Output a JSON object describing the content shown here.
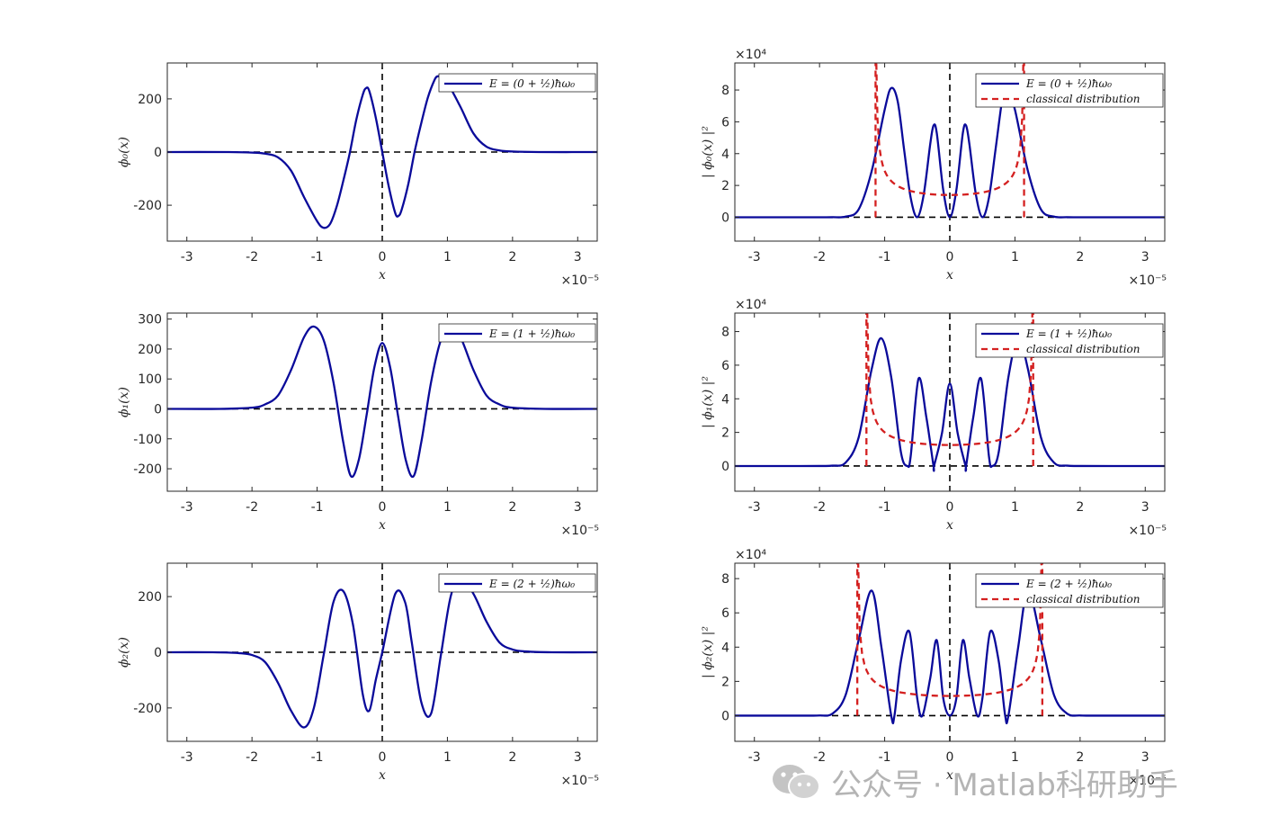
{
  "watermark": {
    "text": "公众号 · Matlab科研助手",
    "icon": "wechat-icon"
  },
  "colors": {
    "wave": "#0a0a9a",
    "classical": "#d42020",
    "axis": "#262626",
    "guide": "#000000"
  },
  "chart_data": [
    {
      "type": "line",
      "id": "phi0",
      "title": "",
      "xlabel": "x",
      "ylabel": "ϕ₀(x)",
      "x_multiplier": "×10⁻⁵",
      "y_multiplier": "",
      "xlim": [
        -3.3,
        3.3
      ],
      "ylim": [
        -335,
        335
      ],
      "xticks": [
        -3,
        -2,
        -1,
        0,
        1,
        2,
        3
      ],
      "xtick_labels": [
        "-3",
        "-2",
        "-1",
        "0",
        "1",
        "2",
        "3"
      ],
      "yticks": [
        -200,
        0,
        200
      ],
      "ytick_labels": [
        "-200",
        "0",
        "200"
      ],
      "legend": [
        "E = (0 + ½)ħω₀"
      ],
      "legend_position": "top-right",
      "guides": {
        "hline": 0,
        "vline": 0
      },
      "series": [
        {
          "name": "E = (0 + ½)ħω₀",
          "style": "solid",
          "x": [
            -3.3,
            -2.4,
            -2.0,
            -1.8,
            -1.6,
            -1.4,
            -1.2,
            -1.0,
            -0.9,
            -0.8,
            -0.7,
            -0.6,
            -0.5,
            -0.4,
            -0.3,
            -0.25,
            -0.2,
            -0.1,
            0,
            0.1,
            0.2,
            0.25,
            0.3,
            0.4,
            0.5,
            0.6,
            0.7,
            0.8,
            0.85,
            0.9,
            1.0,
            1.2,
            1.4,
            1.6,
            1.8,
            2.0,
            2.4,
            3.3
          ],
          "y": [
            0,
            0,
            -2,
            -6,
            -20,
            -70,
            -170,
            -260,
            -285,
            -270,
            -205,
            -110,
            -5,
            120,
            215,
            240,
            230,
            130,
            0,
            -130,
            -230,
            -240,
            -215,
            -120,
            5,
            110,
            205,
            270,
            285,
            280,
            260,
            170,
            70,
            20,
            6,
            2,
            0,
            0
          ]
        }
      ]
    },
    {
      "type": "line",
      "id": "phi0sq",
      "title": "",
      "xlabel": "x",
      "ylabel": "| ϕ₀(x) |²",
      "x_multiplier": "×10⁻⁵",
      "y_multiplier": "×10⁴",
      "xlim": [
        -3.3,
        3.3
      ],
      "ylim": [
        -1.5,
        9.7
      ],
      "xticks": [
        -3,
        -2,
        -1,
        0,
        1,
        2,
        3
      ],
      "xtick_labels": [
        "-3",
        "-2",
        "-1",
        "0",
        "1",
        "2",
        "3"
      ],
      "yticks": [
        0,
        2,
        4,
        6,
        8
      ],
      "ytick_labels": [
        "0",
        "2",
        "4",
        "6",
        "8"
      ],
      "legend": [
        "E = (0 + ½)ħω₀",
        "classical    distribution"
      ],
      "legend_position": "top-right",
      "guides": {
        "hline": 0,
        "vline": 0
      },
      "series": [
        {
          "name": "E = (0 + ½)ħω₀",
          "style": "solid",
          "x": [
            -3.3,
            -2.4,
            -2.0,
            -1.8,
            -1.6,
            -1.4,
            -1.2,
            -1.0,
            -0.9,
            -0.8,
            -0.7,
            -0.6,
            -0.5,
            -0.4,
            -0.3,
            -0.25,
            -0.2,
            -0.1,
            0,
            0.1,
            0.2,
            0.25,
            0.3,
            0.4,
            0.5,
            0.6,
            0.7,
            0.8,
            0.85,
            0.9,
            1.0,
            1.2,
            1.4,
            1.6,
            1.8,
            2.0,
            2.4,
            3.3
          ],
          "y": [
            0,
            0,
            0.0004,
            0.0036,
            0.04,
            0.49,
            2.89,
            6.76,
            8.12,
            7.29,
            4.2,
            1.21,
            0.0025,
            1.44,
            4.62,
            5.76,
            5.29,
            1.69,
            0,
            1.69,
            5.29,
            5.76,
            4.62,
            1.44,
            0.0025,
            1.21,
            4.2,
            7.29,
            8.12,
            7.84,
            6.76,
            2.89,
            0.49,
            0.04,
            0.0036,
            0.0004,
            0,
            0
          ]
        },
        {
          "name": "classical    distribution",
          "style": "dashed",
          "turning_points": [
            -1.14,
            1.14
          ],
          "y_min": 1.4,
          "y_max": 9.7
        }
      ]
    },
    {
      "type": "line",
      "id": "phi1",
      "title": "",
      "xlabel": "x",
      "ylabel": "ϕ₁(x)",
      "x_multiplier": "×10⁻⁵",
      "y_multiplier": "",
      "xlim": [
        -3.3,
        3.3
      ],
      "ylim": [
        -275,
        320
      ],
      "xticks": [
        -3,
        -2,
        -1,
        0,
        1,
        2,
        3
      ],
      "xtick_labels": [
        "-3",
        "-2",
        "-1",
        "0",
        "1",
        "2",
        "3"
      ],
      "yticks": [
        -200,
        -100,
        0,
        100,
        200,
        300
      ],
      "ytick_labels": [
        "-200",
        "-100",
        "0",
        "100",
        "200",
        "300"
      ],
      "legend": [
        "E = (1 + ½)ħω₀"
      ],
      "legend_position": "top-right",
      "guides": {
        "hline": 0,
        "vline": 0
      },
      "series": [
        {
          "name": "E = (1 + ½)ħω₀",
          "style": "solid",
          "x": [
            -3.3,
            -2.5,
            -2.0,
            -1.8,
            -1.6,
            -1.4,
            -1.2,
            -1.05,
            -0.9,
            -0.75,
            -0.6,
            -0.48,
            -0.36,
            -0.24,
            -0.12,
            0,
            0.12,
            0.24,
            0.36,
            0.48,
            0.6,
            0.75,
            0.9,
            1.05,
            1.2,
            1.4,
            1.6,
            1.8,
            2.0,
            2.5,
            3.3
          ],
          "y": [
            0,
            0,
            4,
            15,
            45,
            130,
            240,
            275,
            230,
            90,
            -110,
            -225,
            -170,
            -20,
            140,
            220,
            140,
            -20,
            -170,
            -225,
            -110,
            90,
            230,
            275,
            240,
            130,
            45,
            15,
            4,
            0,
            0
          ]
        }
      ]
    },
    {
      "type": "line",
      "id": "phi1sq",
      "title": "",
      "xlabel": "x",
      "ylabel": "| ϕ₁(x) |²",
      "x_multiplier": "×10⁻⁵",
      "y_multiplier": "×10⁴",
      "xlim": [
        -3.3,
        3.3
      ],
      "ylim": [
        -1.5,
        9.1
      ],
      "xticks": [
        -3,
        -2,
        -1,
        0,
        1,
        2,
        3
      ],
      "xtick_labels": [
        "-3",
        "-2",
        "-1",
        "0",
        "1",
        "2",
        "3"
      ],
      "yticks": [
        0,
        2,
        4,
        6,
        8
      ],
      "ytick_labels": [
        "0",
        "2",
        "4",
        "6",
        "8"
      ],
      "legend": [
        "E = (1 + ½)ħω₀",
        "classical    distribution"
      ],
      "legend_position": "top-right",
      "guides": {
        "hline": 0,
        "vline": 0
      },
      "series": [
        {
          "name": "E = (1 + ½)ħω₀",
          "style": "solid",
          "x": [
            -3.3,
            -2.5,
            -2.0,
            -1.8,
            -1.6,
            -1.4,
            -1.2,
            -1.05,
            -0.9,
            -0.75,
            -0.65,
            -0.6,
            -0.48,
            -0.36,
            -0.25,
            -0.24,
            -0.12,
            0,
            0.12,
            0.24,
            0.25,
            0.36,
            0.48,
            0.6,
            0.65,
            0.75,
            0.9,
            1.05,
            1.2,
            1.4,
            1.6,
            1.8,
            2.0,
            2.5,
            3.3
          ],
          "y": [
            0,
            0,
            0.0016,
            0.022,
            0.2,
            1.69,
            5.76,
            7.6,
            5.3,
            0.81,
            0,
            0.6,
            5.2,
            2.9,
            0,
            0.04,
            1.96,
            4.9,
            1.96,
            0.04,
            0,
            2.9,
            5.2,
            0.6,
            0,
            0.81,
            5.3,
            7.6,
            5.76,
            1.69,
            0.2,
            0.022,
            0.0016,
            0,
            0
          ]
        },
        {
          "name": "classical    distribution",
          "style": "dashed",
          "turning_points": [
            -1.28,
            1.28
          ],
          "y_min": 1.25,
          "y_max": 9.1
        }
      ]
    },
    {
      "type": "line",
      "id": "phi2",
      "title": "",
      "xlabel": "x",
      "ylabel": "ϕ₂(x)",
      "x_multiplier": "×10⁻⁵",
      "y_multiplier": "",
      "xlim": [
        -3.3,
        3.3
      ],
      "ylim": [
        -320,
        320
      ],
      "xticks": [
        -3,
        -2,
        -1,
        0,
        1,
        2,
        3
      ],
      "xtick_labels": [
        "-3",
        "-2",
        "-1",
        "0",
        "1",
        "2",
        "3"
      ],
      "yticks": [
        -200,
        0,
        200
      ],
      "ytick_labels": [
        "-200",
        "0",
        "200"
      ],
      "legend": [
        "E = (2 + ½)ħω₀"
      ],
      "legend_position": "top-right",
      "guides": {
        "hline": 0,
        "vline": 0
      },
      "series": [
        {
          "name": "E = (2 + ½)ħω₀",
          "style": "solid",
          "x": [
            -3.3,
            -2.6,
            -2.2,
            -2.0,
            -1.8,
            -1.6,
            -1.4,
            -1.2,
            -1.05,
            -0.9,
            -0.75,
            -0.6,
            -0.45,
            -0.3,
            -0.2,
            -0.1,
            0,
            0.2,
            0.35,
            0.45,
            0.6,
            0.75,
            0.9,
            1.05,
            1.2,
            1.4,
            1.6,
            1.8,
            2.0,
            2.2,
            2.6,
            3.3
          ],
          "y": [
            0,
            0,
            -3,
            -10,
            -35,
            -110,
            -210,
            -270,
            -200,
            -10,
            180,
            220,
            100,
            -150,
            -210,
            -100,
            0,
            210,
            180,
            40,
            -180,
            -220,
            -10,
            200,
            270,
            210,
            110,
            35,
            10,
            3,
            0,
            0
          ]
        }
      ]
    },
    {
      "type": "line",
      "id": "phi2sq",
      "title": "",
      "xlabel": "x",
      "ylabel": "| ϕ₂(x) |²",
      "x_multiplier": "×10⁻⁵",
      "y_multiplier": "×10⁴",
      "xlim": [
        -3.3,
        3.3
      ],
      "ylim": [
        -1.5,
        8.9
      ],
      "xticks": [
        -3,
        -2,
        -1,
        0,
        1,
        2,
        3
      ],
      "xtick_labels": [
        "-3",
        "-2",
        "-1",
        "0",
        "1",
        "2",
        "3"
      ],
      "yticks": [
        0,
        2,
        4,
        6,
        8
      ],
      "ytick_labels": [
        "0",
        "2",
        "4",
        "6",
        "8"
      ],
      "legend": [
        "E = (2 + ½)ħω₀",
        "classical    distribution"
      ],
      "legend_position": "top-right",
      "guides": {
        "hline": 0,
        "vline": 0
      },
      "series": [
        {
          "name": "E = (2 + ½)ħω₀",
          "style": "solid",
          "x": [
            -3.3,
            -2.6,
            -2.2,
            -2.0,
            -1.8,
            -1.6,
            -1.4,
            -1.2,
            -1.05,
            -0.9,
            -0.85,
            -0.75,
            -0.62,
            -0.5,
            -0.42,
            -0.3,
            -0.2,
            -0.1,
            0,
            0.1,
            0.2,
            0.3,
            0.42,
            0.5,
            0.62,
            0.75,
            0.85,
            0.9,
            1.05,
            1.2,
            1.4,
            1.6,
            1.8,
            2.0,
            2.2,
            2.6,
            3.3
          ],
          "y": [
            0,
            0,
            0.0009,
            0.01,
            0.12,
            1.2,
            4.4,
            7.3,
            4.0,
            0.01,
            0,
            3.2,
            4.9,
            1.0,
            0,
            2.2,
            4.4,
            1.0,
            0,
            1.0,
            4.4,
            2.2,
            0,
            1.0,
            4.9,
            3.2,
            0,
            0.01,
            4.0,
            7.3,
            4.4,
            1.2,
            0.12,
            0.01,
            0.0009,
            0,
            0
          ]
        },
        {
          "name": "classical    distribution",
          "style": "dashed",
          "turning_points": [
            -1.42,
            1.42
          ],
          "y_min": 1.15,
          "y_max": 8.9
        }
      ]
    }
  ]
}
